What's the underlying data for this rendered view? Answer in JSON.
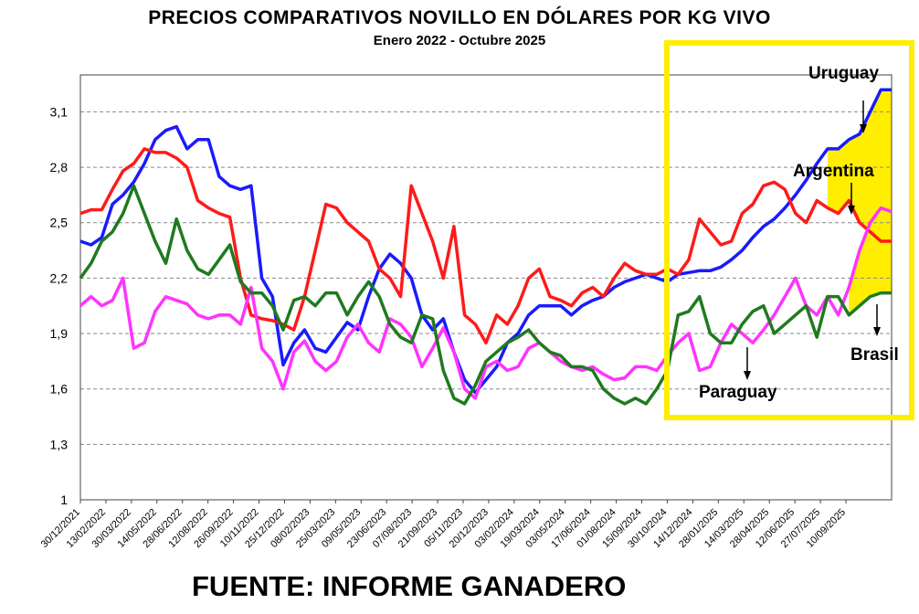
{
  "colors": {
    "uruguay": "#1a1aff",
    "argentina": "#ff1a1a",
    "paraguay": "#ff33ff",
    "brasil": "#1f7a1f",
    "highlight": "#ffee00"
  },
  "footer": {
    "source": "FUENTE: INFORME GANADERO"
  },
  "chart_data": {
    "type": "line",
    "title": "PRECIOS COMPARATIVOS NOVILLO EN DÓLARES POR KG  VIVO",
    "subtitle": "Enero  2022 -  Octubre 2025",
    "xlabel": "",
    "ylabel": "",
    "ylim": [
      1,
      3.3
    ],
    "yticks": [
      "1",
      "1,3",
      "1,6",
      "1,9",
      "2,2",
      "2,5",
      "2,8",
      "3,1"
    ],
    "x_tick_labels": [
      "30/12/2021",
      "13/02/2022",
      "30/03/2022",
      "14/05/2022",
      "28/06/2022",
      "12/08/2022",
      "26/09/2022",
      "10/11/2022",
      "25/12/2022",
      "08/02/2023",
      "25/03/2023",
      "09/05/2023",
      "23/06/2023",
      "07/08/2023",
      "21/09/2023",
      "05/11/2023",
      "20/12/2023",
      "03/02/2024",
      "19/03/2024",
      "03/05/2024",
      "17/06/2024",
      "01/08/2024",
      "15/09/2024",
      "30/10/2024",
      "14/12/2024",
      "28/01/2025",
      "14/03/2025",
      "28/04/2025",
      "12/06/2025",
      "27/07/2025",
      "10/09/2025"
    ],
    "grid": "horizontal dashed",
    "legend": "inline annotations",
    "annotations": [
      "Uruguay",
      "Argentina",
      "Paraguay",
      "Brasil"
    ],
    "series": [
      {
        "name": "Uruguay",
        "values": [
          2.4,
          2.38,
          2.42,
          2.6,
          2.65,
          2.72,
          2.82,
          2.95,
          3.0,
          3.02,
          2.9,
          2.95,
          2.95,
          2.75,
          2.7,
          2.68,
          2.7,
          2.2,
          2.1,
          1.73,
          1.85,
          1.92,
          1.82,
          1.8,
          1.88,
          1.96,
          1.92,
          2.1,
          2.25,
          2.33,
          2.28,
          2.2,
          2.0,
          1.92,
          1.98,
          1.8,
          1.65,
          1.58,
          1.65,
          1.72,
          1.85,
          1.9,
          2.0,
          2.05,
          2.05,
          2.05,
          2.0,
          2.05,
          2.08,
          2.1,
          2.15,
          2.18,
          2.2,
          2.22,
          2.2,
          2.18,
          2.22,
          2.23,
          2.24,
          2.24,
          2.26,
          2.3,
          2.35,
          2.42,
          2.48,
          2.52,
          2.58,
          2.65,
          2.73,
          2.82,
          2.9,
          2.9,
          2.95,
          2.98,
          3.1,
          3.22,
          3.22
        ]
      },
      {
        "name": "Argentina",
        "values": [
          2.55,
          2.57,
          2.57,
          2.68,
          2.78,
          2.82,
          2.9,
          2.88,
          2.88,
          2.85,
          2.8,
          2.62,
          2.58,
          2.55,
          2.53,
          2.2,
          2.0,
          1.98,
          1.97,
          1.95,
          1.92,
          2.1,
          2.35,
          2.6,
          2.58,
          2.5,
          2.45,
          2.4,
          2.25,
          2.2,
          2.1,
          2.7,
          2.55,
          2.4,
          2.2,
          2.48,
          2.0,
          1.95,
          1.85,
          2.0,
          1.95,
          2.05,
          2.2,
          2.25,
          2.1,
          2.08,
          2.05,
          2.12,
          2.15,
          2.1,
          2.2,
          2.28,
          2.24,
          2.22,
          2.22,
          2.25,
          2.22,
          2.3,
          2.52,
          2.45,
          2.38,
          2.4,
          2.55,
          2.6,
          2.7,
          2.72,
          2.68,
          2.55,
          2.5,
          2.62,
          2.58,
          2.55,
          2.62,
          2.5,
          2.45,
          2.4,
          2.4
        ]
      },
      {
        "name": "Paraguay",
        "values": [
          2.05,
          2.1,
          2.05,
          2.08,
          2.2,
          1.82,
          1.85,
          2.02,
          2.1,
          2.08,
          2.06,
          2.0,
          1.98,
          2.0,
          2.0,
          1.95,
          2.15,
          1.82,
          1.75,
          1.6,
          1.8,
          1.86,
          1.75,
          1.7,
          1.75,
          1.88,
          1.95,
          1.85,
          1.8,
          1.98,
          1.95,
          1.88,
          1.72,
          1.82,
          1.93,
          1.8,
          1.6,
          1.55,
          1.72,
          1.75,
          1.7,
          1.72,
          1.82,
          1.85,
          1.8,
          1.75,
          1.72,
          1.7,
          1.72,
          1.68,
          1.65,
          1.66,
          1.72,
          1.72,
          1.7,
          1.78,
          1.85,
          1.9,
          1.7,
          1.72,
          1.85,
          1.95,
          1.9,
          1.85,
          1.92,
          2.0,
          2.1,
          2.2,
          2.05,
          2.0,
          2.1,
          2.0,
          2.15,
          2.35,
          2.5,
          2.58,
          2.56
        ]
      },
      {
        "name": "Brasil",
        "values": [
          2.2,
          2.28,
          2.4,
          2.45,
          2.55,
          2.7,
          2.55,
          2.4,
          2.28,
          2.52,
          2.35,
          2.25,
          2.22,
          2.3,
          2.38,
          2.18,
          2.12,
          2.12,
          2.05,
          1.92,
          2.08,
          2.1,
          2.05,
          2.12,
          2.12,
          2.0,
          2.1,
          2.18,
          2.1,
          1.95,
          1.88,
          1.85,
          2.0,
          1.98,
          1.7,
          1.55,
          1.52,
          1.62,
          1.75,
          1.8,
          1.85,
          1.88,
          1.92,
          1.85,
          1.8,
          1.78,
          1.72,
          1.72,
          1.7,
          1.6,
          1.55,
          1.52,
          1.55,
          1.52,
          1.6,
          1.7,
          2.0,
          2.02,
          2.1,
          1.9,
          1.85,
          1.85,
          1.95,
          2.02,
          2.05,
          1.9,
          1.95,
          2.0,
          2.05,
          1.88,
          2.1,
          2.1,
          2.0,
          2.05,
          2.1,
          2.12,
          2.12
        ]
      }
    ]
  }
}
